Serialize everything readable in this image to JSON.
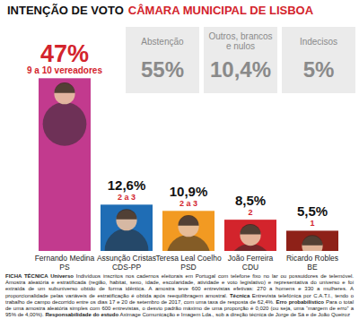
{
  "chart_data": {
    "type": "bar",
    "title": "INTENÇÃO DE VOTO",
    "subtitle": "CÂMARA MUNICIPAL DE LISBOA",
    "categories": [
      "Fernando Medina",
      "Assunção Cristas",
      "Teresa Leal Coelho",
      "João Ferreira",
      "Ricardo Robles"
    ],
    "parties": [
      "PS",
      "CDS-PP",
      "PSD",
      "CDU",
      "BE"
    ],
    "values": [
      47,
      12.6,
      10.9,
      8.5,
      5.5
    ],
    "value_labels": [
      "47%",
      "12,6%",
      "10,9%",
      "8,5%",
      "5,5%"
    ],
    "seats": [
      "9 a 10 vereadores",
      "2 a 3",
      "2 a 3",
      "2",
      "1"
    ],
    "colors": [
      "#c23a8e",
      "#1f6db5",
      "#f29a22",
      "#d3242c",
      "#8e2118"
    ],
    "ylim": [
      0,
      50
    ],
    "data_labels": true,
    "tick_labels": false,
    "grid": false,
    "annotations": [
      {
        "text": "Abstenção",
        "value": 55,
        "label": "55%"
      },
      {
        "text": "Outros, brancos e nulos",
        "value": 10.4,
        "label": "10,4%"
      },
      {
        "text": "Indecisos",
        "value": 5,
        "label": "5%"
      }
    ],
    "footnote": [
      {
        "heading": "FICHA TÉCNICA Universo",
        "text": "Indivíduos inscritos nos cadernos eleitorais em Portugal com telefone fixo no lar ou possuidores de telemóvel. Amostra aleatória e estratificada (região, habitat, sexo, idade, escolaridade, atividade e voto legislativo) e representativa do universo e foi extraída de um subuniverso obtido de forma idêntica. A amostra teve 600 entrevistas efetivas: 270 a homens e 330 a mulheres. A proporcionalidade pelas variáveis de estratificação é obtida após reequilibragem amostral."
      },
      {
        "heading": "Técnica",
        "text": "Entrevista telefónica por C.A.T.I., tendo o trabalho de campo decorrido entre os dias 17 e 20 de setembro de 2017, com uma taxa de resposta de 62,4%."
      },
      {
        "heading": "Erro probabilístico",
        "text": "Para o total de uma amostra aleatória simples com 600 entrevistas, o desvio padrão máximo de uma proporção é 0,020 (ou seja, uma “margem de erro” a 95% de 4,00%)."
      },
      {
        "heading": "Responsabilidade do estudo",
        "text": "Aximage Comunicação e Imagem Lda., sob a direção técnica de Jorge de Sá e de João Queiroz"
      }
    ]
  }
}
